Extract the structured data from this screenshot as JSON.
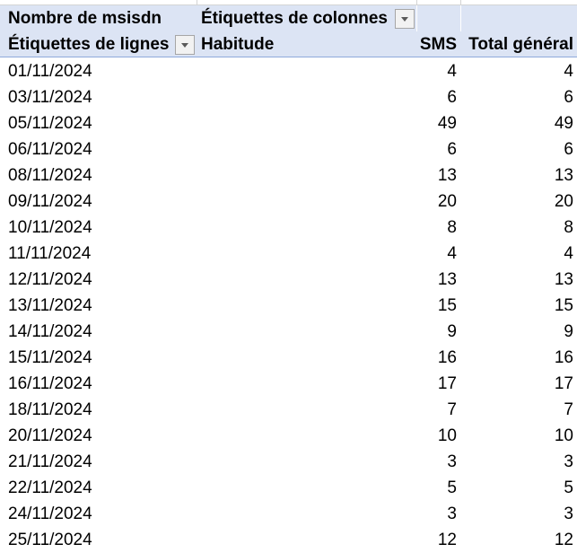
{
  "pivot": {
    "value_field_label": "Nombre de msisdn",
    "column_labels_header": "Étiquettes de colonnes",
    "row_labels_header": "Étiquettes de lignes",
    "column_field_label": "Habitude",
    "column_item": "SMS",
    "grand_total_label": "Total général",
    "filter_icon": "chevron-down-icon"
  },
  "rows": [
    {
      "date": "01/11/2024",
      "sms": "4",
      "total": "4"
    },
    {
      "date": "03/11/2024",
      "sms": "6",
      "total": "6"
    },
    {
      "date": "05/11/2024",
      "sms": "49",
      "total": "49"
    },
    {
      "date": "06/11/2024",
      "sms": "6",
      "total": "6"
    },
    {
      "date": "08/11/2024",
      "sms": "13",
      "total": "13"
    },
    {
      "date": "09/11/2024",
      "sms": "20",
      "total": "20"
    },
    {
      "date": "10/11/2024",
      "sms": "8",
      "total": "8"
    },
    {
      "date": "11/11/2024",
      "sms": "4",
      "total": "4"
    },
    {
      "date": "12/11/2024",
      "sms": "13",
      "total": "13"
    },
    {
      "date": "13/11/2024",
      "sms": "15",
      "total": "15"
    },
    {
      "date": "14/11/2024",
      "sms": "9",
      "total": "9"
    },
    {
      "date": "15/11/2024",
      "sms": "16",
      "total": "16"
    },
    {
      "date": "16/11/2024",
      "sms": "17",
      "total": "17"
    },
    {
      "date": "18/11/2024",
      "sms": "7",
      "total": "7"
    },
    {
      "date": "20/11/2024",
      "sms": "10",
      "total": "10"
    },
    {
      "date": "21/11/2024",
      "sms": "3",
      "total": "3"
    },
    {
      "date": "22/11/2024",
      "sms": "5",
      "total": "5"
    },
    {
      "date": "24/11/2024",
      "sms": "3",
      "total": "3"
    },
    {
      "date": "25/11/2024",
      "sms": "12",
      "total": "12"
    }
  ]
}
